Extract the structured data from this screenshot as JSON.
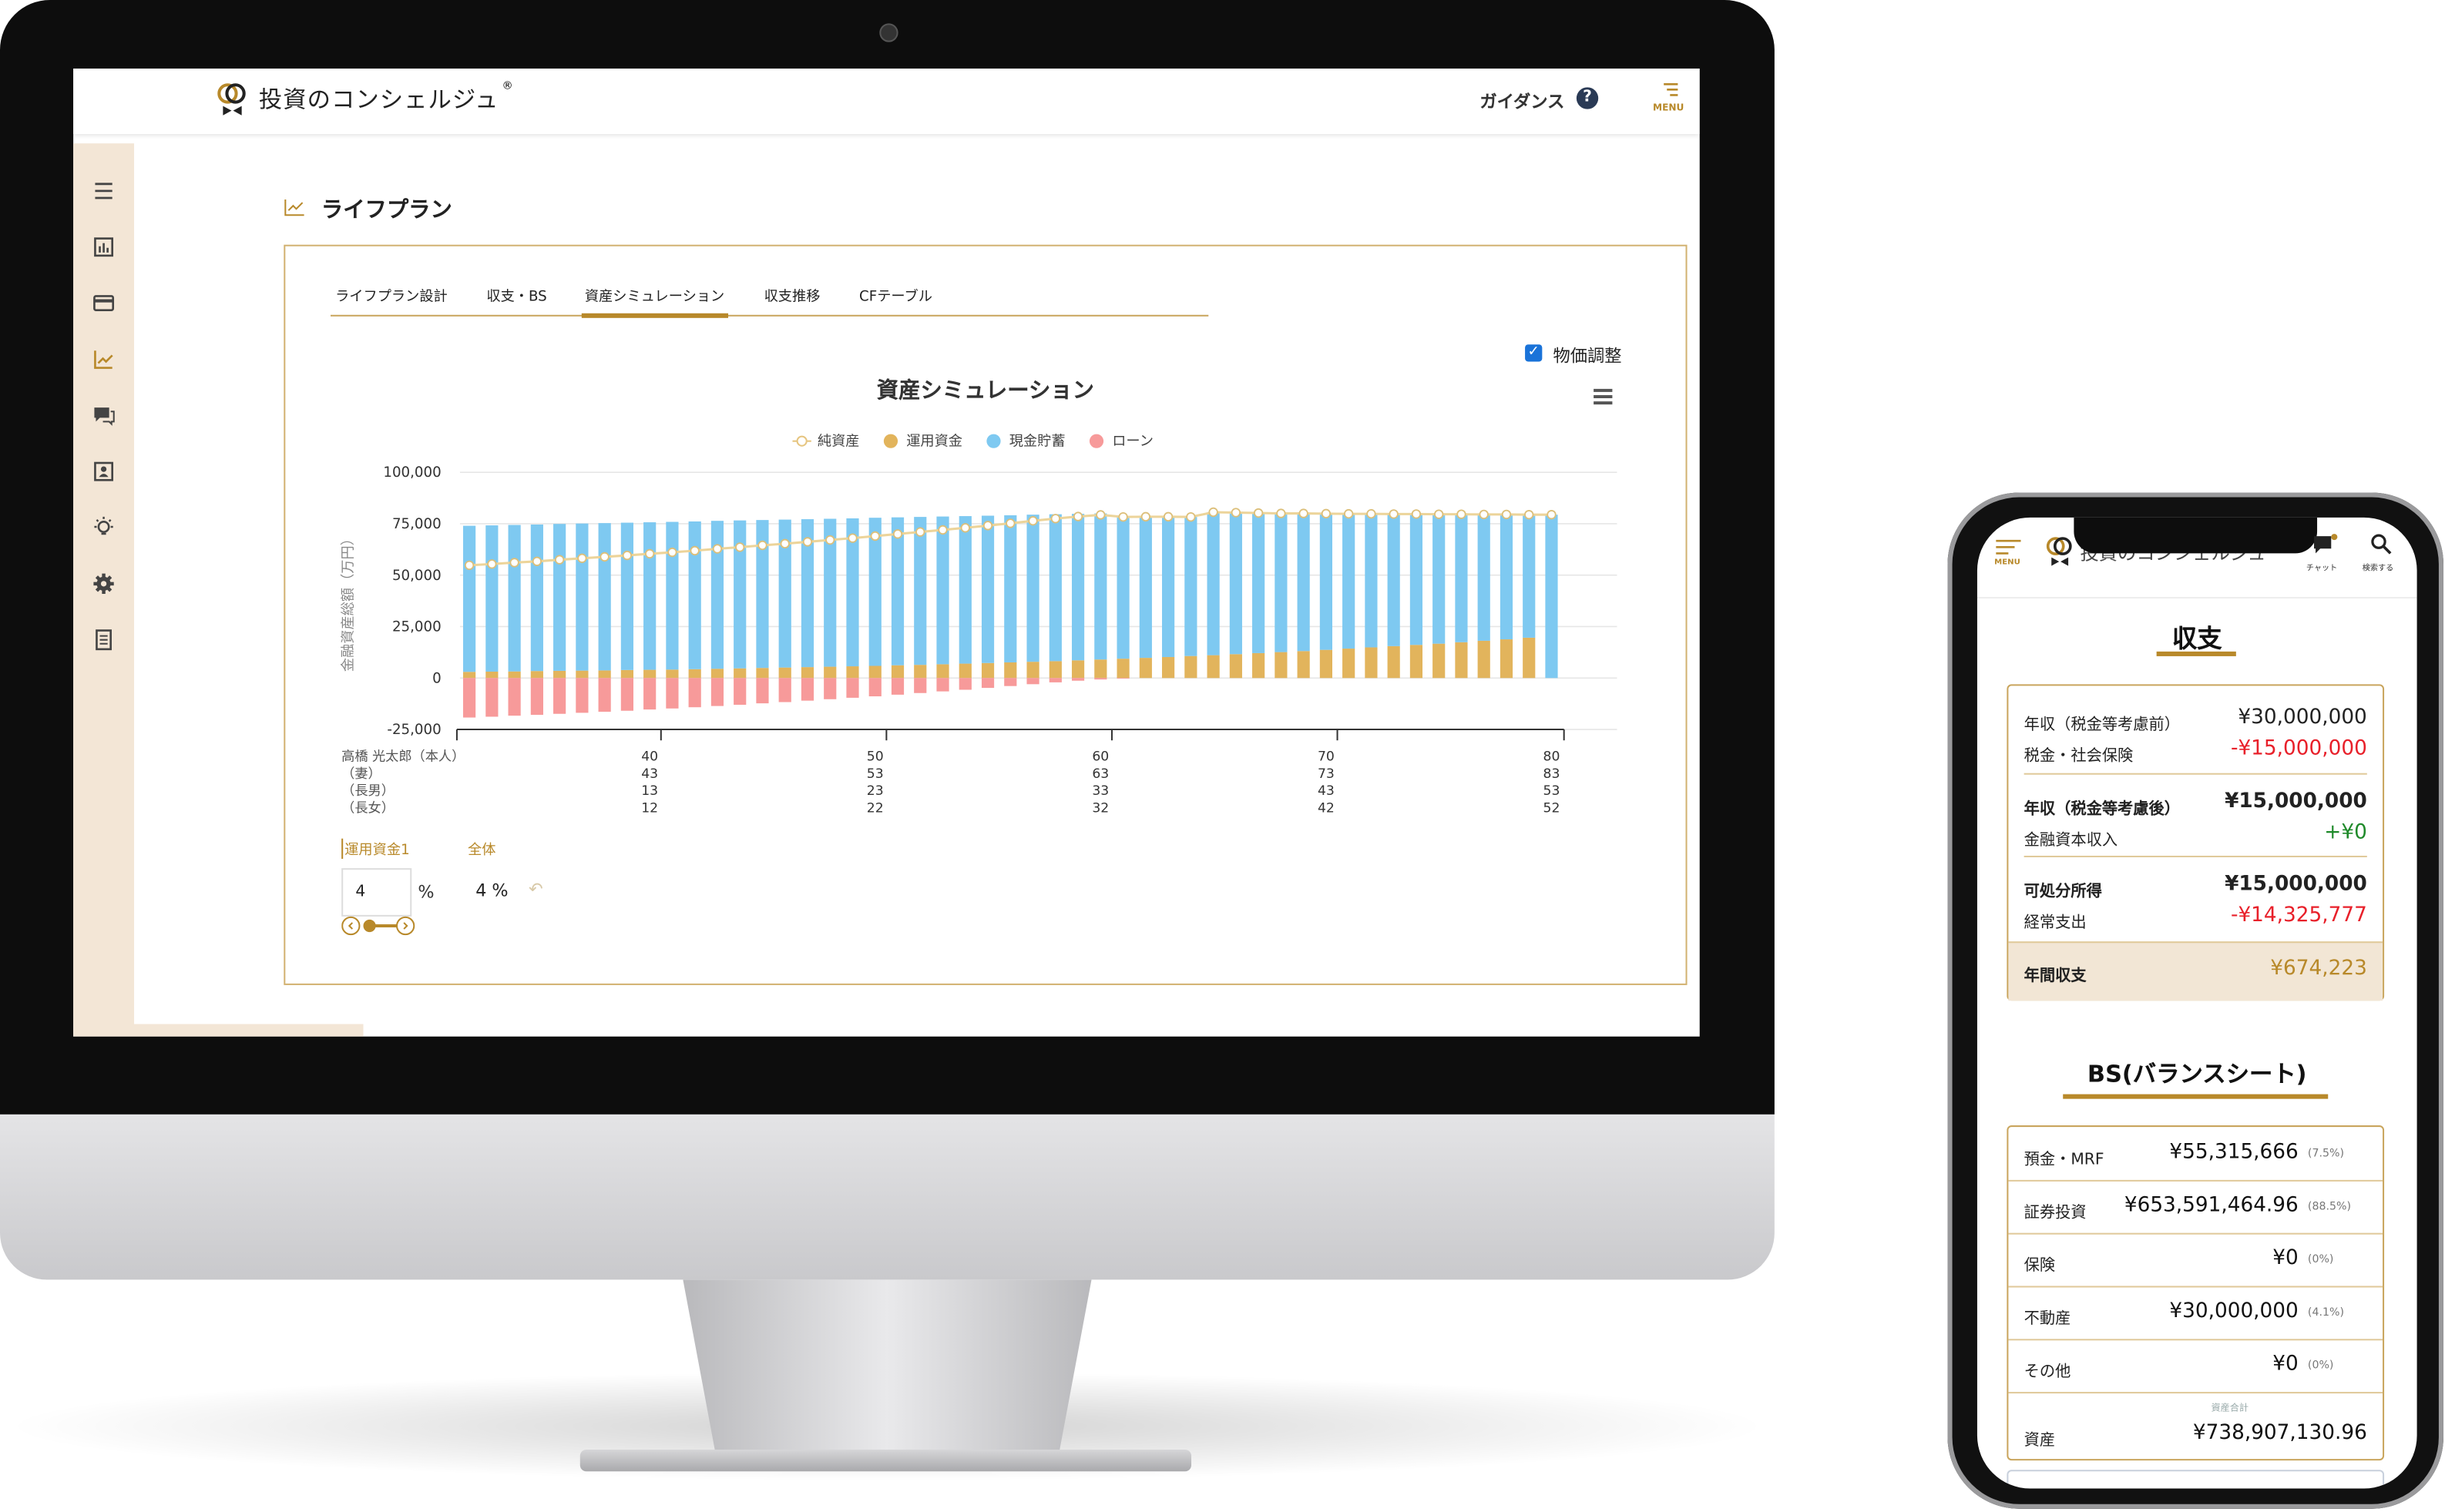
{
  "desktop": {
    "header": {
      "logo_text": "投資のコンシェルジュ",
      "logo_mark": "®",
      "guidance_label": "ガイダンス",
      "menu_label": "MENU"
    },
    "sidebar": {
      "items": [
        {
          "icon": "menu-icon"
        },
        {
          "icon": "bar-chart-icon"
        },
        {
          "icon": "credit-card-icon"
        },
        {
          "icon": "line-chart-icon",
          "active": true
        },
        {
          "icon": "chat-icon"
        },
        {
          "icon": "contact-card-icon"
        },
        {
          "icon": "lightbulb-icon"
        },
        {
          "icon": "gear-icon"
        },
        {
          "icon": "document-icon"
        }
      ]
    },
    "page_title": "ライフプラン",
    "tabs": [
      {
        "label": "ライフプラン設計"
      },
      {
        "label": "収支・BS"
      },
      {
        "label": "資産シミュレーション",
        "active": true
      },
      {
        "label": "収支推移"
      },
      {
        "label": "CFテーブル"
      }
    ],
    "price_adjust": {
      "label": "物価調整",
      "checked": true
    },
    "controls": {
      "fund_tab": "運用資金1",
      "all_tab": "全体",
      "rate_value": "4",
      "rate_unit": "%",
      "rate_display": "4 %"
    },
    "accent_color": "#b8892a"
  },
  "chart_data": {
    "type": "bar",
    "stacked": true,
    "title": "資産シミュレーション",
    "ylabel": "金融資産総額（万円）",
    "ylim": [
      -25000,
      100000
    ],
    "yticks": [
      "100,000",
      "75,000",
      "50,000",
      "25,000",
      "0",
      "-25,000"
    ],
    "ytick_values": [
      100000,
      75000,
      50000,
      25000,
      0,
      -25000
    ],
    "grid": true,
    "legend_position": "top",
    "x_ages": [
      32,
      33,
      34,
      35,
      36,
      37,
      38,
      39,
      40,
      41,
      42,
      43,
      44,
      45,
      46,
      47,
      48,
      49,
      50,
      51,
      52,
      53,
      54,
      55,
      56,
      57,
      58,
      59,
      60,
      61,
      62,
      63,
      64,
      65,
      66,
      67,
      68,
      69,
      70,
      71,
      72,
      73,
      74,
      75,
      76,
      77,
      78,
      79,
      80
    ],
    "x_rows": [
      {
        "label": "高橋 光太郎（本人）",
        "ticks": [
          "40",
          "50",
          "60",
          "70",
          "80"
        ]
      },
      {
        "label": "（妻）",
        "ticks": [
          "43",
          "53",
          "63",
          "73",
          "83"
        ]
      },
      {
        "label": "（長男）",
        "ticks": [
          "13",
          "23",
          "33",
          "43",
          "53"
        ]
      },
      {
        "label": "（長女）",
        "ticks": [
          "12",
          "22",
          "32",
          "42",
          "52"
        ]
      }
    ],
    "x_tick_ages": [
      40,
      50,
      60,
      70,
      80
    ],
    "series": [
      {
        "name": "純資産",
        "type": "line",
        "color": "#ecd49a",
        "values": [
          54800,
          55400,
          56100,
          56700,
          57500,
          58200,
          58900,
          59600,
          60400,
          61100,
          61900,
          62800,
          63600,
          64500,
          65300,
          66200,
          67100,
          68000,
          69000,
          70000,
          71000,
          72000,
          73000,
          74100,
          75200,
          76400,
          77500,
          78500,
          79300,
          78300,
          78400,
          78400,
          78300,
          80600,
          80400,
          80200,
          80000,
          80000,
          79900,
          79800,
          79800,
          79700,
          79700,
          79600,
          79600,
          79500,
          79500,
          79400,
          79400
        ]
      },
      {
        "name": "運用資金",
        "type": "bar",
        "color": "#e2b45c",
        "values": [
          3000,
          3100,
          3200,
          3400,
          3500,
          3600,
          3700,
          3900,
          4000,
          4100,
          4300,
          4500,
          4700,
          4900,
          5100,
          5300,
          5500,
          5700,
          5900,
          6200,
          6400,
          6700,
          7000,
          7300,
          7600,
          7900,
          8200,
          8600,
          9000,
          9400,
          9800,
          10200,
          10700,
          11100,
          11600,
          12100,
          12600,
          13100,
          13700,
          14300,
          14900,
          15500,
          16100,
          16700,
          17400,
          18100,
          18800,
          19600,
          0
        ]
      },
      {
        "name": "現金貯蓄",
        "type": "bar",
        "color": "#7ec9f1",
        "values": [
          71000,
          71100,
          71200,
          71200,
          71400,
          71500,
          71600,
          71600,
          71700,
          71800,
          71800,
          71900,
          71900,
          71900,
          71900,
          71900,
          71900,
          71900,
          72000,
          71900,
          71900,
          71800,
          71700,
          71600,
          71500,
          71500,
          71400,
          71200,
          71000,
          69200,
          68600,
          68200,
          67600,
          69500,
          68800,
          68100,
          67400,
          66900,
          66200,
          65500,
          64900,
          64200,
          63600,
          62900,
          62200,
          61400,
          60700,
          59800,
          79400
        ]
      },
      {
        "name": "ローン",
        "type": "bar",
        "color": "#f79a9a",
        "values": [
          -19200,
          -18800,
          -18300,
          -17900,
          -17400,
          -16900,
          -16400,
          -15900,
          -15300,
          -14800,
          -14200,
          -13600,
          -13000,
          -12300,
          -11700,
          -11000,
          -10300,
          -9600,
          -8900,
          -8100,
          -7300,
          -6500,
          -5700,
          -4800,
          -3900,
          -3000,
          -2100,
          -1300,
          -700,
          -300,
          0,
          0,
          0,
          0,
          0,
          0,
          0,
          0,
          0,
          0,
          0,
          0,
          0,
          0,
          0,
          0,
          0,
          0,
          0
        ]
      }
    ]
  },
  "mobile": {
    "header": {
      "menu_label": "MENU",
      "logo_text": "投資のコンシェルジュ",
      "chat_label": "チャット",
      "search_label": "検索する"
    },
    "income": {
      "title": "収支",
      "rows": [
        {
          "label": "年収（税金等考慮前）",
          "value": "¥30,000,000",
          "tone": "normal"
        },
        {
          "label": "税金・社会保険",
          "value": "-¥15,000,000",
          "tone": "negative"
        },
        {
          "label": "年収（税金等考慮後）",
          "value": "¥15,000,000",
          "tone": "normal"
        },
        {
          "label": "金融資本収入",
          "value": "+¥0",
          "tone": "positive"
        },
        {
          "label": "可処分所得",
          "value": "¥15,000,000",
          "tone": "normal"
        },
        {
          "label": "経常支出",
          "value": "-¥14,325,777",
          "tone": "negative"
        }
      ],
      "total": {
        "label": "年間収支",
        "value": "¥674,223"
      }
    },
    "bs": {
      "title": "BS(バランスシート)",
      "rows": [
        {
          "label": "預金・MRF",
          "value": "¥55,315,666",
          "pct": "(7.5%)"
        },
        {
          "label": "証券投資",
          "value": "¥653,591,464.96",
          "pct": "(88.5%)"
        },
        {
          "label": "保険",
          "value": "¥0",
          "pct": "(0%)"
        },
        {
          "label": "不動産",
          "value": "¥30,000,000",
          "pct": "(4.1%)"
        },
        {
          "label": "その他",
          "value": "¥0",
          "pct": "(0%)"
        }
      ],
      "total": {
        "caption": "資産合計",
        "label": "資産",
        "value": "¥738,907,130.96"
      }
    },
    "colors": {
      "negative": "#e8202a",
      "positive": "#1f8a2a",
      "accent": "#b8892a"
    }
  }
}
